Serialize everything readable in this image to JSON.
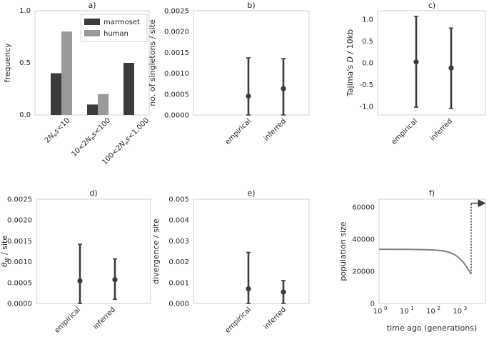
{
  "colors": {
    "dark": "#3b3b3b",
    "light": "#999999",
    "line": "#808080"
  },
  "chart_data": [
    {
      "id": "a",
      "type": "bar",
      "title": "a)",
      "ylabel": "frequency",
      "ylim": [
        0,
        1.0
      ],
      "yticks": [
        "0.0",
        "0.5",
        "1.0"
      ],
      "categories": [
        "2Nₑs<10",
        "10<2Nₑs<100",
        "100<2Nₑs<1,000"
      ],
      "series": [
        {
          "name": "marmoset",
          "values": [
            0.4,
            0.1,
            0.5
          ],
          "color": "#3b3b3b"
        },
        {
          "name": "human",
          "values": [
            0.8,
            0.2,
            0.0
          ],
          "color": "#999999"
        }
      ],
      "legend": "top-right"
    },
    {
      "id": "b",
      "type": "scatter",
      "title": "b)",
      "ylabel": "no. of singletons / site",
      "ylim": [
        0,
        0.0025
      ],
      "yticks": [
        "0.0000",
        "0.0005",
        "0.0010",
        "0.0015",
        "0.0020",
        "0.0025"
      ],
      "categories": [
        "empirical",
        "inferred"
      ],
      "points": [
        {
          "y": 0.00045,
          "lo": 0.0,
          "hi": 0.00137
        },
        {
          "y": 0.00063,
          "lo": 0.0,
          "hi": 0.00135
        }
      ]
    },
    {
      "id": "c",
      "type": "scatter",
      "title": "c)",
      "ylabel": "Tajima's D / 10kb",
      "ylim": [
        -1.2,
        1.2
      ],
      "yticks": [
        "-1.0",
        "-0.5",
        "0.0",
        "0.5",
        "1.0"
      ],
      "categories": [
        "empirical",
        "inferred"
      ],
      "points": [
        {
          "y": 0.02,
          "lo": -1.02,
          "hi": 1.07
        },
        {
          "y": -0.12,
          "lo": -1.05,
          "hi": 0.8
        }
      ]
    },
    {
      "id": "d",
      "type": "scatter",
      "title": "d)",
      "ylabel": "θW / site",
      "ylim": [
        0,
        0.0025
      ],
      "yticks": [
        "0.0000",
        "0.0005",
        "0.0010",
        "0.0015",
        "0.0020",
        "0.0025"
      ],
      "categories": [
        "empirical",
        "inferred"
      ],
      "points": [
        {
          "y": 0.00054,
          "lo": 0.0,
          "hi": 0.00142
        },
        {
          "y": 0.00057,
          "lo": 0.0001,
          "hi": 0.00107
        }
      ]
    },
    {
      "id": "e",
      "type": "scatter",
      "title": "e)",
      "ylabel": "divergence / site",
      "ylim": [
        0,
        0.005
      ],
      "yticks": [
        "0.000",
        "0.001",
        "0.002",
        "0.003",
        "0.004",
        "0.005"
      ],
      "categories": [
        "empirical",
        "inferred"
      ],
      "points": [
        {
          "y": 0.0007,
          "lo": 0.0,
          "hi": 0.00245
        },
        {
          "y": 0.00055,
          "lo": 0.0,
          "hi": 0.0011
        }
      ]
    },
    {
      "id": "f",
      "type": "line",
      "title": "f)",
      "xlabel": "time ago (generations)",
      "ylabel": "population size",
      "xscale": "log",
      "xlim": [
        1,
        10000
      ],
      "ylim": [
        0,
        65000
      ],
      "xticks": [
        "10",
        "10",
        "10",
        "10"
      ],
      "xtick_exp": [
        "0",
        "1",
        "2",
        "3"
      ],
      "yticks": [
        "0",
        "20000",
        "40000",
        "60000"
      ],
      "series": [
        {
          "x": [
            1,
            10,
            30,
            100,
            200,
            400,
            700,
            1000,
            1500,
            2000,
            2500,
            2900
          ],
          "y": [
            33800,
            33700,
            33600,
            33400,
            33000,
            32100,
            30400,
            28500,
            25500,
            22600,
            20100,
            18500
          ]
        }
      ],
      "jump": {
        "x": 2900,
        "y_from": 18500,
        "y_to": 62500,
        "x_end": 9000
      }
    }
  ]
}
